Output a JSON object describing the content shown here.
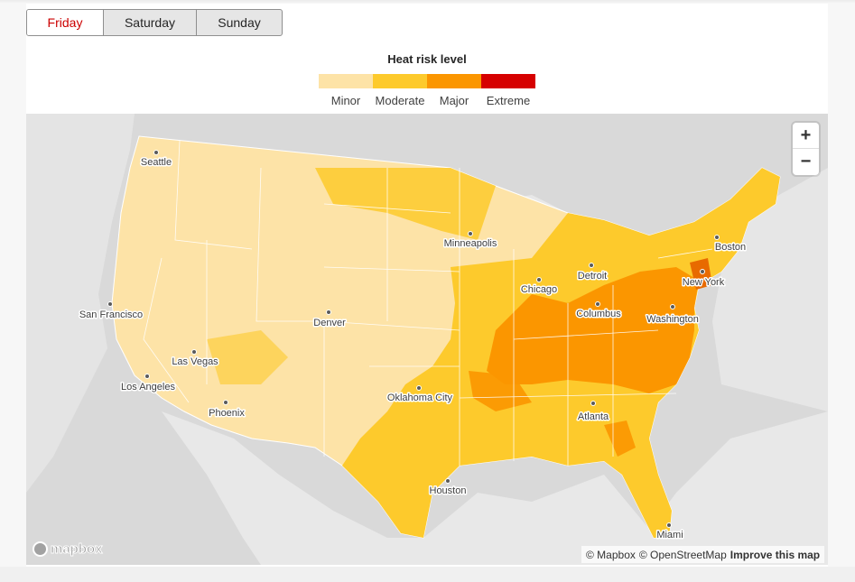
{
  "tabs": [
    {
      "label": "Friday",
      "active": true
    },
    {
      "label": "Saturday",
      "active": false
    },
    {
      "label": "Sunday",
      "active": false
    }
  ],
  "legend": {
    "title": "Heat risk level",
    "levels": [
      {
        "label": "Minor",
        "color": "#fde3a7"
      },
      {
        "label": "Moderate",
        "color": "#fdca2c"
      },
      {
        "label": "Major",
        "color": "#fb9600"
      },
      {
        "label": "Extreme",
        "color": "#d60000"
      }
    ]
  },
  "map": {
    "cities": [
      "Seattle",
      "San Francisco",
      "Las Vegas",
      "Los Angeles",
      "Phoenix",
      "Denver",
      "Minneapolis",
      "Chicago",
      "Detroit",
      "Columbus",
      "Washington",
      "New York",
      "Boston",
      "Oklahoma City",
      "Atlanta",
      "Houston",
      "Miami"
    ],
    "zoom_in_label": "+",
    "zoom_out_label": "−",
    "logo_text": "mapbox",
    "attribution": {
      "mapbox": "© Mapbox",
      "osm": "© OpenStreetMap",
      "improve": "Improve this map"
    }
  }
}
